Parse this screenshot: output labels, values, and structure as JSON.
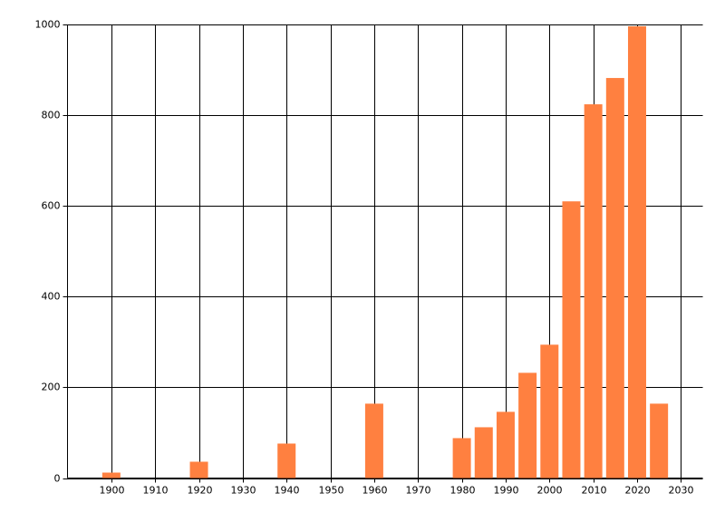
{
  "chart_data": {
    "type": "bar",
    "x": [
      1900,
      1920,
      1940,
      1960,
      1980,
      1985,
      1990,
      1995,
      2000,
      2005,
      2010,
      2015,
      2020,
      2025
    ],
    "values": [
      12,
      36,
      76,
      164,
      88,
      112,
      146,
      232,
      294,
      610,
      824,
      882,
      996,
      164
    ],
    "color": "#ff8040",
    "xlim": [
      1890,
      2035
    ],
    "xticks": [
      1900,
      1910,
      1920,
      1930,
      1940,
      1950,
      1960,
      1970,
      1980,
      1990,
      2000,
      2010,
      2020,
      2030
    ],
    "ylim": [
      0,
      1000
    ],
    "yticks": [
      0,
      200,
      400,
      600,
      800,
      1000
    ],
    "grid": true
  }
}
